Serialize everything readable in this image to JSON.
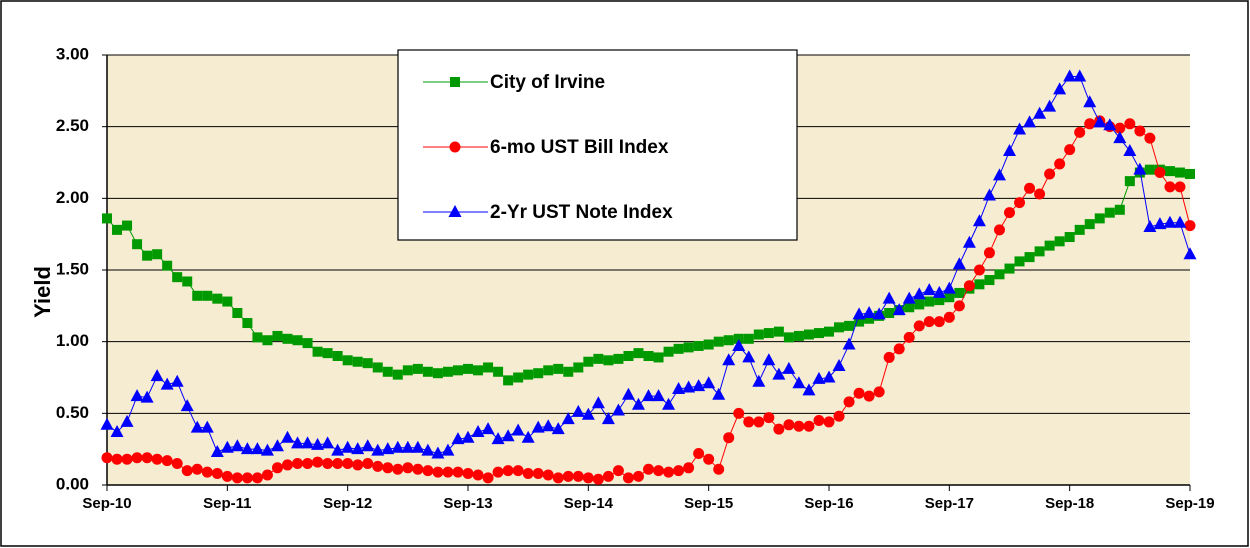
{
  "chart_data": {
    "type": "line",
    "y_label": "Yield",
    "categories": [
      "Sep-10",
      null,
      null,
      null,
      null,
      null,
      null,
      null,
      null,
      null,
      null,
      null,
      "Sep-11",
      null,
      null,
      null,
      null,
      null,
      null,
      null,
      null,
      null,
      null,
      null,
      "Sep-12",
      null,
      null,
      null,
      null,
      null,
      null,
      null,
      null,
      null,
      null,
      null,
      "Sep-13",
      null,
      null,
      null,
      null,
      null,
      null,
      null,
      null,
      null,
      null,
      null,
      "Sep-14",
      null,
      null,
      null,
      null,
      null,
      null,
      null,
      null,
      null,
      null,
      null,
      "Sep-15",
      null,
      null,
      null,
      null,
      null,
      null,
      null,
      null,
      null,
      null,
      null,
      "Sep-16",
      null,
      null,
      null,
      null,
      null,
      null,
      null,
      null,
      null,
      null,
      null,
      "Sep-17",
      null,
      null,
      null,
      null,
      null,
      null,
      null,
      null,
      null,
      null,
      null,
      "Sep-18",
      null,
      null,
      null,
      null,
      null,
      null,
      null,
      null,
      null,
      null,
      null,
      "Sep-19"
    ],
    "series": [
      {
        "name": "City of Irvine",
        "color": "#009900",
        "marker": "square",
        "values": [
          1.86,
          1.78,
          1.81,
          1.68,
          1.6,
          1.61,
          1.53,
          1.45,
          1.42,
          1.32,
          1.32,
          1.3,
          1.28,
          1.2,
          1.13,
          1.03,
          1.01,
          1.04,
          1.02,
          1.01,
          0.99,
          0.93,
          0.92,
          0.9,
          0.87,
          0.86,
          0.85,
          0.82,
          0.79,
          0.77,
          0.8,
          0.81,
          0.79,
          0.78,
          0.79,
          0.8,
          0.81,
          0.8,
          0.82,
          0.79,
          0.73,
          0.75,
          0.77,
          0.78,
          0.8,
          0.81,
          0.79,
          0.82,
          0.86,
          0.88,
          0.87,
          0.88,
          0.9,
          0.92,
          0.9,
          0.89,
          0.93,
          0.95,
          0.96,
          0.97,
          0.98,
          1.0,
          1.01,
          1.02,
          1.02,
          1.05,
          1.06,
          1.07,
          1.03,
          1.04,
          1.05,
          1.06,
          1.07,
          1.1,
          1.11,
          1.14,
          1.16,
          1.18,
          1.2,
          1.22,
          1.24,
          1.26,
          1.28,
          1.29,
          1.31,
          1.34,
          1.37,
          1.4,
          1.43,
          1.47,
          1.51,
          1.56,
          1.59,
          1.63,
          1.67,
          1.7,
          1.73,
          1.78,
          1.82,
          1.86,
          1.9,
          1.92,
          2.12,
          2.18,
          2.2,
          2.2,
          2.19,
          2.18,
          2.17
        ]
      },
      {
        "name": "6-mo UST Bill Index",
        "color": "#ff0000",
        "marker": "circle",
        "values": [
          0.19,
          0.18,
          0.18,
          0.19,
          0.19,
          0.18,
          0.17,
          0.15,
          0.1,
          0.11,
          0.09,
          0.08,
          0.06,
          0.05,
          0.05,
          0.05,
          0.07,
          0.12,
          0.14,
          0.15,
          0.15,
          0.16,
          0.15,
          0.15,
          0.15,
          0.14,
          0.15,
          0.13,
          0.12,
          0.11,
          0.12,
          0.11,
          0.1,
          0.09,
          0.09,
          0.09,
          0.08,
          0.07,
          0.05,
          0.09,
          0.1,
          0.1,
          0.08,
          0.08,
          0.07,
          0.05,
          0.06,
          0.06,
          0.05,
          0.04,
          0.06,
          0.1,
          0.05,
          0.06,
          0.11,
          0.1,
          0.09,
          0.1,
          0.12,
          0.22,
          0.18,
          0.11,
          0.33,
          0.5,
          0.44,
          0.44,
          0.47,
          0.39,
          0.42,
          0.41,
          0.41,
          0.45,
          0.44,
          0.48,
          0.58,
          0.64,
          0.62,
          0.65,
          0.89,
          0.95,
          1.03,
          1.11,
          1.14,
          1.14,
          1.17,
          1.25,
          1.39,
          1.5,
          1.62,
          1.78,
          1.9,
          1.97,
          2.07,
          2.03,
          2.17,
          2.24,
          2.34,
          2.46,
          2.52,
          2.54,
          2.5,
          2.49,
          2.52,
          2.47,
          2.42,
          2.18,
          2.08,
          2.08,
          1.81
        ]
      },
      {
        "name": "2-Yr UST Note Index",
        "color": "#0000ff",
        "marker": "triangle",
        "values": [
          0.42,
          0.37,
          0.44,
          0.62,
          0.61,
          0.76,
          0.7,
          0.72,
          0.55,
          0.4,
          0.4,
          0.23,
          0.26,
          0.27,
          0.25,
          0.25,
          0.24,
          0.27,
          0.33,
          0.29,
          0.29,
          0.28,
          0.29,
          0.24,
          0.26,
          0.25,
          0.27,
          0.24,
          0.25,
          0.26,
          0.26,
          0.26,
          0.24,
          0.22,
          0.24,
          0.32,
          0.33,
          0.37,
          0.39,
          0.32,
          0.34,
          0.38,
          0.33,
          0.4,
          0.41,
          0.39,
          0.46,
          0.51,
          0.49,
          0.57,
          0.46,
          0.52,
          0.63,
          0.56,
          0.62,
          0.62,
          0.56,
          0.67,
          0.68,
          0.69,
          0.71,
          0.63,
          0.87,
          0.97,
          0.89,
          0.72,
          0.87,
          0.77,
          0.81,
          0.71,
          0.66,
          0.74,
          0.75,
          0.83,
          0.98,
          1.19,
          1.2,
          1.19,
          1.3,
          1.22,
          1.3,
          1.33,
          1.36,
          1.34,
          1.37,
          1.54,
          1.69,
          1.84,
          2.02,
          2.16,
          2.33,
          2.48,
          2.53,
          2.59,
          2.64,
          2.76,
          2.85,
          2.85,
          2.67,
          2.53,
          2.51,
          2.42,
          2.33,
          2.2,
          1.8,
          1.82,
          1.83,
          1.83,
          1.61
        ]
      }
    ],
    "ylim": [
      0,
      3
    ],
    "yticks": [
      {
        "value": 0,
        "label": "0.00"
      },
      {
        "value": 0.5,
        "label": "0.50"
      },
      {
        "value": 1,
        "label": "1.00"
      },
      {
        "value": 1.5,
        "label": "1.50"
      },
      {
        "value": 2,
        "label": "2.00"
      },
      {
        "value": 2.5,
        "label": "2.50"
      },
      {
        "value": 3,
        "label": "3.00"
      }
    ],
    "grid": true,
    "plot_background": "#f6ecd2"
  }
}
